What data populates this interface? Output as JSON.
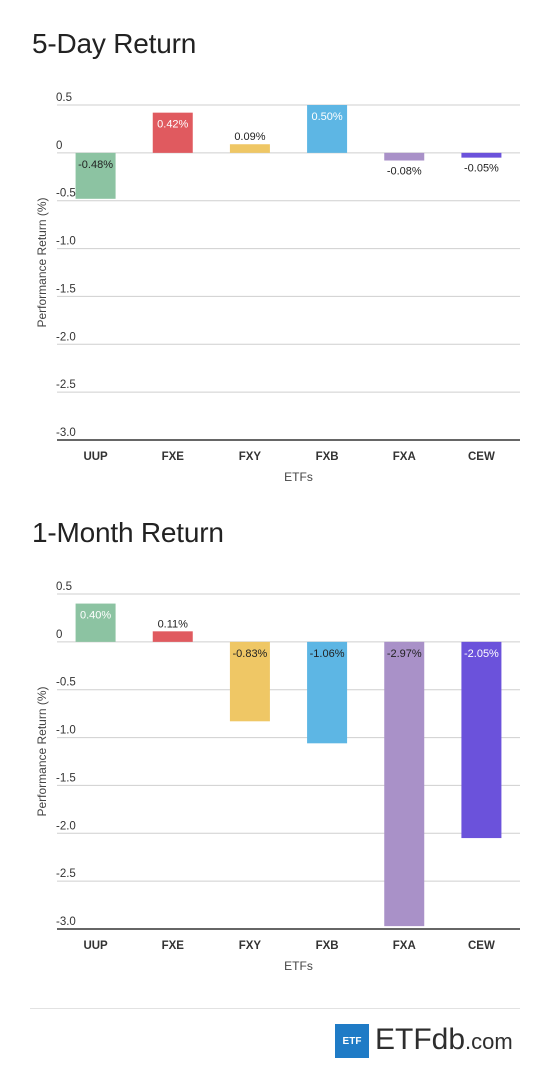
{
  "chart_data": [
    {
      "type": "bar",
      "title": "5-Day Return",
      "xlabel": "ETFs",
      "ylabel": "Performance Return (%)",
      "ylim": [
        -3.0,
        0.5
      ],
      "yticks": [
        0.5,
        0,
        -0.5,
        -1.0,
        -1.5,
        -2.0,
        -2.5,
        -3.0
      ],
      "ytick_labels": [
        "0.5",
        "0",
        "-0.5",
        "-1.0",
        "-1.5",
        "-2.0",
        "-2.5",
        "-3.0"
      ],
      "categories": [
        "UUP",
        "FXE",
        "FXY",
        "FXB",
        "FXA",
        "CEW"
      ],
      "values": [
        -0.48,
        0.42,
        0.09,
        0.5,
        -0.08,
        -0.05
      ],
      "data_labels": [
        "-0.48%",
        "0.42%",
        "0.09%",
        "0.50%",
        "-0.08%",
        "-0.05%"
      ],
      "colors": [
        "#8cc3a2",
        "#e05a5f",
        "#efc765",
        "#5db6e4",
        "#a991c8",
        "#6b52db"
      ],
      "grid": true
    },
    {
      "type": "bar",
      "title": "1-Month Return",
      "xlabel": "ETFs",
      "ylabel": "Performance Return (%)",
      "ylim": [
        -3.0,
        0.5
      ],
      "yticks": [
        0.5,
        0,
        -0.5,
        -1.0,
        -1.5,
        -2.0,
        -2.5,
        -3.0
      ],
      "ytick_labels": [
        "0.5",
        "0",
        "-0.5",
        "-1.0",
        "-1.5",
        "-2.0",
        "-2.5",
        "-3.0"
      ],
      "categories": [
        "UUP",
        "FXE",
        "FXY",
        "FXB",
        "FXA",
        "CEW"
      ],
      "values": [
        0.4,
        0.11,
        -0.83,
        -1.06,
        -2.97,
        -2.05
      ],
      "data_labels": [
        "0.40%",
        "0.11%",
        "-0.83%",
        "-1.06%",
        "-2.97%",
        "-2.05%"
      ],
      "colors": [
        "#8cc3a2",
        "#e05a5f",
        "#efc765",
        "#5db6e4",
        "#a991c8",
        "#6b52db"
      ],
      "grid": true
    }
  ],
  "logo": {
    "box_text": "ETF",
    "brand_main": "ETF",
    "brand_db": "db",
    "brand_suffix": ".com",
    "colors": {
      "box": "#1f7bc6",
      "text": "#2e2e2e"
    }
  }
}
